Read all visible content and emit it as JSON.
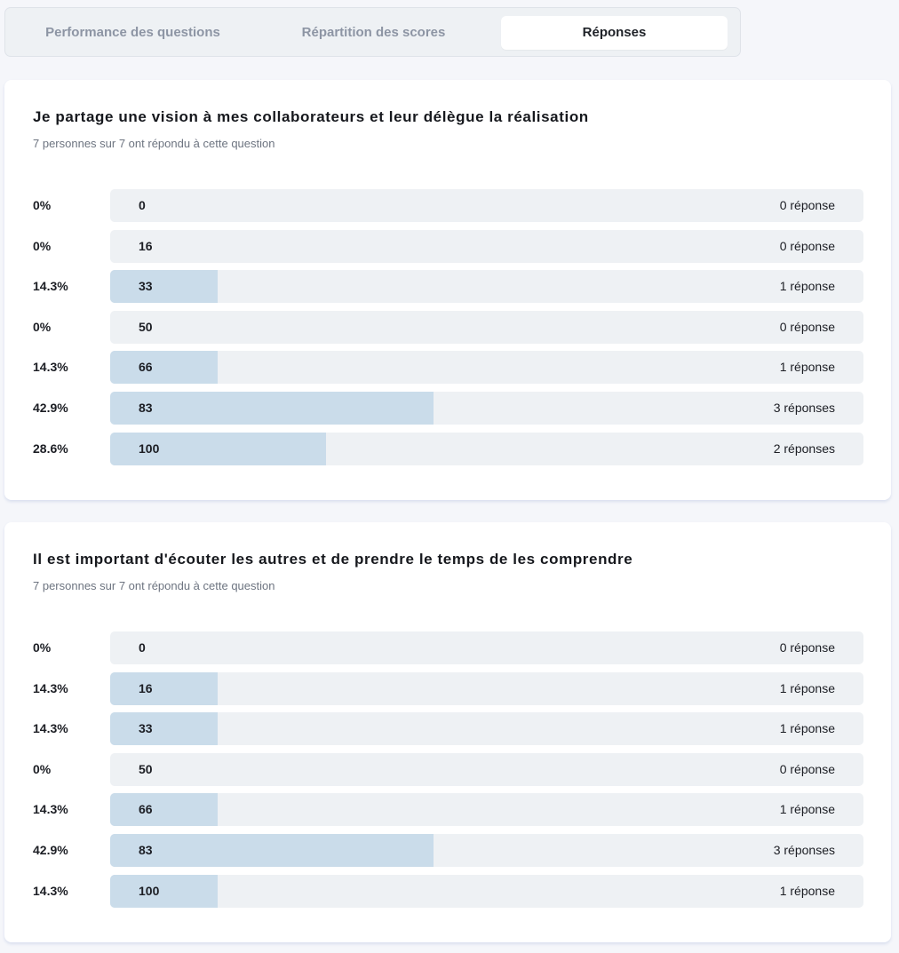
{
  "tabs": [
    {
      "label": "Performance des questions",
      "active": false
    },
    {
      "label": "Répartition des scores",
      "active": false
    },
    {
      "label": "Réponses",
      "active": true
    }
  ],
  "colors": {
    "page_background": "#f5f6fa",
    "bar_track": "#eef1f4",
    "bar_fill": "#cadcea",
    "tab_inactive_text": "#8d95a4"
  },
  "questions": [
    {
      "title": "Je partage une vision à mes collaborateurs et leur délègue la réalisation",
      "subtitle": "7 personnes sur 7 ont répondu à cette question",
      "rows": [
        {
          "percent": "0%",
          "score": "0",
          "count": "0 réponse",
          "fraction": 0.0
        },
        {
          "percent": "0%",
          "score": "16",
          "count": "0 réponse",
          "fraction": 0.0
        },
        {
          "percent": "14.3%",
          "score": "33",
          "count": "1 réponse",
          "fraction": 0.143
        },
        {
          "percent": "0%",
          "score": "50",
          "count": "0 réponse",
          "fraction": 0.0
        },
        {
          "percent": "14.3%",
          "score": "66",
          "count": "1 réponse",
          "fraction": 0.143
        },
        {
          "percent": "42.9%",
          "score": "83",
          "count": "3 réponses",
          "fraction": 0.429
        },
        {
          "percent": "28.6%",
          "score": "100",
          "count": "2 réponses",
          "fraction": 0.286
        }
      ]
    },
    {
      "title": "Il est important d'écouter les autres et de prendre le temps de les comprendre",
      "subtitle": "7 personnes sur 7 ont répondu à cette question",
      "rows": [
        {
          "percent": "0%",
          "score": "0",
          "count": "0 réponse",
          "fraction": 0.0
        },
        {
          "percent": "14.3%",
          "score": "16",
          "count": "1 réponse",
          "fraction": 0.143
        },
        {
          "percent": "14.3%",
          "score": "33",
          "count": "1 réponse",
          "fraction": 0.143
        },
        {
          "percent": "0%",
          "score": "50",
          "count": "0 réponse",
          "fraction": 0.0
        },
        {
          "percent": "14.3%",
          "score": "66",
          "count": "1 réponse",
          "fraction": 0.143
        },
        {
          "percent": "42.9%",
          "score": "83",
          "count": "3 réponses",
          "fraction": 0.429
        },
        {
          "percent": "14.3%",
          "score": "100",
          "count": "1 réponse",
          "fraction": 0.143
        }
      ]
    }
  ]
}
